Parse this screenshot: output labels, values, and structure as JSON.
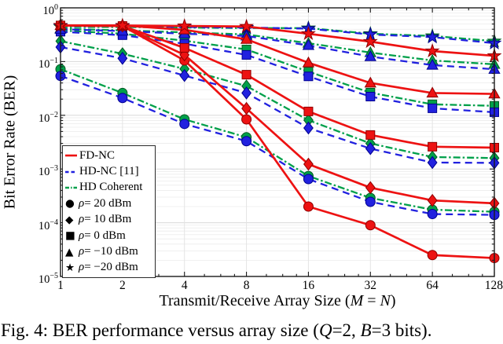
{
  "figure": {
    "caption": {
      "p0": "Fig. 4: BER performance versus array size (",
      "p1": "Q",
      "p2": "=2, ",
      "p3": "B",
      "p4": "=3 bits)."
    }
  },
  "chart_data": {
    "type": "line",
    "title": "",
    "ylabel": "Bit Error Rate (BER)",
    "xlabel_parts": {
      "p0": "Transmit/Receive Array Size (",
      "p1": "M",
      "p2": " = ",
      "p3": "N",
      "p4": ")"
    },
    "xscale": "log2",
    "yscale": "log10",
    "xlim": [
      1,
      128
    ],
    "ylim": [
      1e-05,
      1
    ],
    "grid": "horizontal-minor-and-major, vertical-major",
    "legend_position": "southwest",
    "x": [
      1,
      2,
      4,
      8,
      16,
      32,
      64,
      128
    ],
    "x_tick_labels": [
      "1",
      "2",
      "4",
      "8",
      "16",
      "32",
      "64",
      "128"
    ],
    "minor_x_ticks": [
      3,
      5,
      6,
      7,
      10,
      12,
      14,
      20,
      24,
      28,
      40,
      48,
      56,
      80,
      96,
      112
    ],
    "y_tick_exponents": [
      0,
      -1,
      -2,
      -3,
      -4,
      -5
    ],
    "colors": {
      "fd_nc": "#ED1212",
      "hd_nc": "#2121DF",
      "hd_coherent": "#00A04A"
    },
    "series": [
      {
        "key": "hd-coherent-rho-20dbm",
        "name": "HD Coherent, ρ = 20 dBm",
        "style": "dashdot",
        "marker": "circle",
        "color": "#00A04A",
        "edge": "#005A20",
        "values": [
          0.072,
          0.026,
          0.0084,
          0.0039,
          0.00074,
          0.00029,
          0.000175,
          0.00016
        ]
      },
      {
        "key": "hd-coherent-rho-10dbm",
        "name": "HD Coherent, ρ = 10 dBm",
        "style": "dashdot",
        "marker": "diamond",
        "color": "#00A04A",
        "edge": "#005A20",
        "values": [
          0.24,
          0.14,
          0.073,
          0.035,
          0.0081,
          0.003,
          0.00167,
          0.0016
        ]
      },
      {
        "key": "hd-coherent-rho-0dbm",
        "name": "HD Coherent, ρ = 0 dBm",
        "style": "dashdot",
        "marker": "square",
        "color": "#00A04A",
        "edge": "#005A20",
        "values": [
          0.38,
          0.33,
          0.245,
          0.168,
          0.065,
          0.0264,
          0.016,
          0.015
        ]
      },
      {
        "key": "hd-coherent-rho-m10dbm",
        "name": "HD Coherent, ρ = −10 dBm",
        "style": "dashdot",
        "marker": "triangle",
        "color": "#00A04A",
        "edge": "#005A20",
        "values": [
          0.41,
          0.38,
          0.35,
          0.32,
          0.22,
          0.147,
          0.105,
          0.089
        ]
      },
      {
        "key": "hd-coherent-rho-m20dbm",
        "name": "HD Coherent, ρ = −20 dBm",
        "style": "dashdot",
        "marker": "star",
        "color": "#00A04A",
        "edge": "#005A20",
        "values": [
          0.44,
          0.44,
          0.43,
          0.42,
          0.42,
          0.33,
          0.3,
          0.24
        ]
      },
      {
        "key": "hd-nc-rho-20dbm",
        "name": "HD-NC [11], ρ = 20 dBm",
        "style": "dashed",
        "marker": "circle",
        "color": "#2121DF",
        "edge": "#000090",
        "values": [
          0.054,
          0.021,
          0.0069,
          0.0033,
          0.00065,
          0.000245,
          0.000145,
          0.00014
        ]
      },
      {
        "key": "hd-nc-rho-10dbm",
        "name": "HD-NC [11], ρ = 10 dBm",
        "style": "dashed",
        "marker": "diamond",
        "color": "#2121DF",
        "edge": "#000090",
        "values": [
          0.186,
          0.115,
          0.055,
          0.026,
          0.0058,
          0.0024,
          0.00132,
          0.0013
        ]
      },
      {
        "key": "hd-nc-rho-0dbm",
        "name": "HD-NC [11], ρ = 0 dBm",
        "style": "dashed",
        "marker": "square",
        "color": "#2121DF",
        "edge": "#000090",
        "values": [
          0.36,
          0.31,
          0.215,
          0.133,
          0.053,
          0.0223,
          0.0135,
          0.0114
        ]
      },
      {
        "key": "hd-nc-rho-m10dbm",
        "name": "HD-NC [11], ρ = −10 dBm",
        "style": "dashed",
        "marker": "triangle",
        "color": "#2121DF",
        "edge": "#000090",
        "values": [
          0.4,
          0.37,
          0.33,
          0.3,
          0.2,
          0.124,
          0.086,
          0.072
        ]
      },
      {
        "key": "hd-nc-rho-m20dbm",
        "name": "HD-NC [11], ρ = −20 dBm",
        "style": "dashed",
        "marker": "star",
        "color": "#2121DF",
        "edge": "#000090",
        "values": [
          0.46,
          0.455,
          0.44,
          0.43,
          0.41,
          0.32,
          0.285,
          0.22
        ]
      },
      {
        "key": "fd-nc-rho-20dbm",
        "name": "FD-NC, ρ = 20 dBm",
        "style": "solid",
        "marker": "circle",
        "color": "#ED1212",
        "edge": "#8F0000",
        "values": [
          0.47,
          0.46,
          0.105,
          0.0084,
          0.0002,
          9e-05,
          2.5e-05,
          2.2e-05
        ]
      },
      {
        "key": "fd-nc-rho-10dbm",
        "name": "FD-NC, ρ = 10 dBm",
        "style": "solid",
        "marker": "diamond",
        "color": "#ED1212",
        "edge": "#8F0000",
        "values": [
          0.47,
          0.46,
          0.133,
          0.0134,
          0.00123,
          0.00045,
          0.00026,
          0.00023
        ]
      },
      {
        "key": "fd-nc-rho-0dbm",
        "name": "FD-NC, ρ = 0 dBm",
        "style": "solid",
        "marker": "square",
        "color": "#ED1212",
        "edge": "#8F0000",
        "values": [
          0.47,
          0.46,
          0.18,
          0.057,
          0.0118,
          0.0043,
          0.0026,
          0.0025
        ]
      },
      {
        "key": "fd-nc-rho-m10dbm",
        "name": "FD-NC, ρ = −10 dBm",
        "style": "solid",
        "marker": "triangle",
        "color": "#ED1212",
        "edge": "#8F0000",
        "values": [
          0.47,
          0.47,
          0.39,
          0.26,
          0.095,
          0.04,
          0.026,
          0.025
        ]
      },
      {
        "key": "fd-nc-rho-m20dbm",
        "name": "FD-NC, ρ = −20 dBm",
        "style": "solid",
        "marker": "star",
        "color": "#ED1212",
        "edge": "#8F0000",
        "values": [
          0.47,
          0.47,
          0.46,
          0.45,
          0.33,
          0.235,
          0.157,
          0.128
        ]
      }
    ],
    "legend": {
      "lines": [
        {
          "label": "FD-NC",
          "style": "solid",
          "color": "#ED1212"
        },
        {
          "label": "HD-NC [11]",
          "style": "dashed",
          "color": "#2121DF"
        },
        {
          "label": "HD Coherent",
          "style": "dashdot",
          "color": "#00A04A"
        }
      ],
      "markers": [
        {
          "glyph": "●",
          "rho": "ρ",
          "label": " = 20 dBm"
        },
        {
          "glyph": "◆",
          "rho": "ρ",
          "label": " = 10 dBm"
        },
        {
          "glyph": "■",
          "rho": "ρ",
          "label": " = 0 dBm"
        },
        {
          "glyph": "▲",
          "rho": "ρ",
          "label": " = −10 dBm"
        },
        {
          "glyph": "★",
          "rho": "ρ",
          "label": " = −20 dBm"
        }
      ]
    }
  }
}
